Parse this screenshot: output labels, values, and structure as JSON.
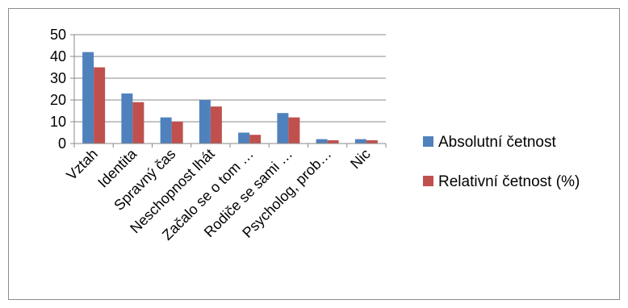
{
  "chart_data": {
    "type": "bar",
    "categories": [
      "Vztah",
      "Identita",
      "Spravný čas",
      "Neschopnost lhát",
      "Začalo se o tom …",
      "Rodiče se sami …",
      "Psycholog, prob…",
      "Nic"
    ],
    "series": [
      {
        "name": "Absolutní četnost",
        "values": [
          42,
          23,
          12,
          20,
          5,
          14,
          2,
          2
        ],
        "color": "#4f81bd"
      },
      {
        "name": "Relativní četnost (%)",
        "values": [
          35,
          19,
          10,
          17,
          4,
          12,
          1.5,
          1.5
        ],
        "color": "#c0504d"
      }
    ],
    "ylim": [
      0,
      50
    ],
    "yticks": [
      0,
      10,
      20,
      30,
      40,
      50
    ],
    "grid": true,
    "legend_position": "right"
  }
}
